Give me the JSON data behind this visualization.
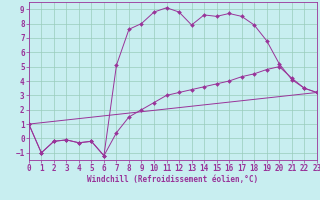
{
  "xlabel": "Windchill (Refroidissement éolien,°C)",
  "xlim": [
    0,
    23
  ],
  "ylim": [
    -1.5,
    9.5
  ],
  "xticks": [
    0,
    1,
    2,
    3,
    4,
    5,
    6,
    7,
    8,
    9,
    10,
    11,
    12,
    13,
    14,
    15,
    16,
    17,
    18,
    19,
    20,
    21,
    22,
    23
  ],
  "yticks": [
    -1,
    0,
    1,
    2,
    3,
    4,
    5,
    6,
    7,
    8,
    9
  ],
  "line_color": "#993399",
  "bg_color": "#c8eef0",
  "grid_color": "#99ccbb",
  "line1_x": [
    0,
    1,
    2,
    3,
    4,
    5,
    6,
    7,
    8,
    9,
    10,
    11,
    12,
    13,
    14,
    15,
    16,
    17,
    18,
    19,
    20,
    21,
    22,
    23
  ],
  "line1_y": [
    1,
    -1,
    -0.2,
    -0.1,
    -0.3,
    -0.2,
    -1.2,
    0.4,
    1.5,
    2.0,
    2.5,
    3.0,
    3.2,
    3.4,
    3.6,
    3.8,
    4.0,
    4.3,
    4.5,
    4.8,
    5.0,
    4.2,
    3.5,
    3.2
  ],
  "line2_x": [
    0,
    1,
    2,
    3,
    4,
    5,
    6,
    7,
    8,
    9,
    10,
    11,
    12,
    13,
    14,
    15,
    16,
    17,
    18,
    19,
    20,
    21,
    22,
    23
  ],
  "line2_y": [
    1,
    -1,
    -0.2,
    -0.1,
    -0.3,
    -0.2,
    -1.2,
    5.1,
    7.6,
    8.0,
    8.8,
    9.1,
    8.8,
    7.9,
    8.6,
    8.5,
    8.7,
    8.5,
    7.9,
    6.8,
    5.2,
    4.1,
    3.5,
    3.2
  ],
  "line3_x": [
    0,
    23
  ],
  "line3_y": [
    1,
    3.2
  ],
  "marker": "D",
  "markersize": 2,
  "linewidth": 0.7,
  "tick_fontsize": 5.5,
  "xlabel_fontsize": 5.5
}
